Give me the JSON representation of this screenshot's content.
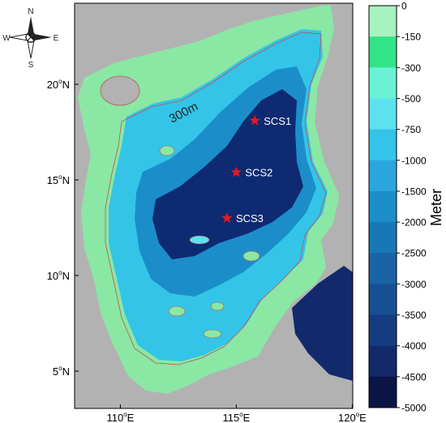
{
  "compass": {
    "north": "N",
    "south": "S",
    "east": "E",
    "west": "W"
  },
  "contour_label": "300m",
  "stations": [
    {
      "name": "SCS1",
      "lon": 115.8,
      "lat": 18.1
    },
    {
      "name": "SCS2",
      "lon": 115.0,
      "lat": 15.4
    },
    {
      "name": "SCS3",
      "lon": 114.6,
      "lat": 13.0
    }
  ],
  "lat_axis": {
    "ticks": [
      {
        "value": 20,
        "base": "20",
        "sup": "o",
        "hemi": "N"
      },
      {
        "value": 15,
        "base": "15",
        "sup": "o",
        "hemi": "N"
      },
      {
        "value": 10,
        "base": "10",
        "sup": "o",
        "hemi": "N"
      },
      {
        "value": 5,
        "base": "5",
        "sup": "o",
        "hemi": "N"
      }
    ]
  },
  "lon_axis": {
    "ticks": [
      {
        "value": 110,
        "base": "110",
        "sup": "o",
        "hemi": "E"
      },
      {
        "value": 115,
        "base": "115",
        "sup": "o",
        "hemi": "E"
      },
      {
        "value": 120,
        "base": "120",
        "sup": "o",
        "hemi": "E"
      }
    ]
  },
  "colorbar": {
    "label": "Meter",
    "levels": [
      "0",
      "-150",
      "-300",
      "-500",
      "-750",
      "-1000",
      "-1500",
      "-2000",
      "-2500",
      "-3000",
      "-3500",
      "-4000",
      "-4500",
      "-5000"
    ],
    "colors": [
      "#a7f2be",
      "#33e487",
      "#6bf2d4",
      "#5ee1ef",
      "#34c4e8",
      "#2ba6dd",
      "#1b8ec9",
      "#1777b5",
      "#1a64a5",
      "#174f92",
      "#153c81",
      "#12296c",
      "#0b1546"
    ]
  },
  "colors": {
    "land": "#b2b2b2",
    "shelf": "#8ae8a4",
    "deep_basin": "#0e2a72",
    "station_marker": "#e01a24"
  }
}
